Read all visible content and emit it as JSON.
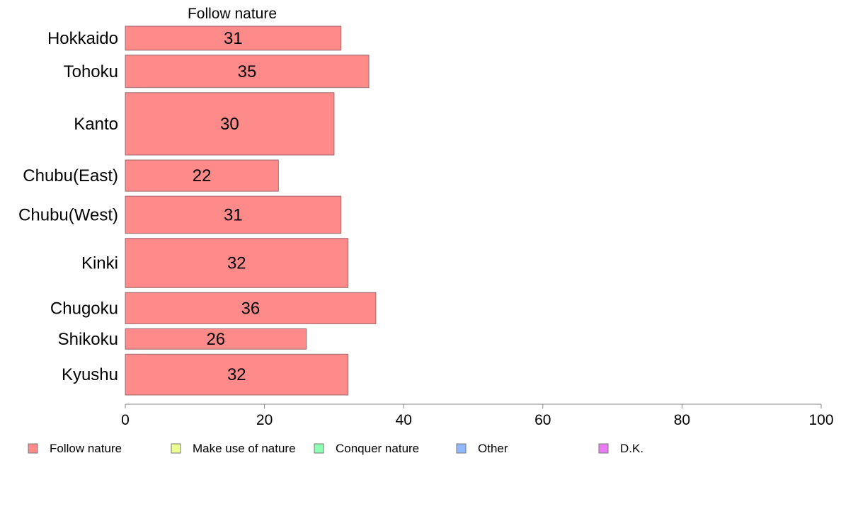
{
  "chart_data": {
    "type": "bar",
    "orientation": "horizontal",
    "panel_title": "Follow nature",
    "categories": [
      "Hokkaido",
      "Tohoku",
      "Kanto",
      "Chubu(East)",
      "Chubu(West)",
      "Kinki",
      "Chugoku",
      "Shikoku",
      "Kyushu"
    ],
    "bar_thickness_weights": [
      1.0,
      1.35,
      2.6,
      1.3,
      1.55,
      2.05,
      1.3,
      0.85,
      1.7
    ],
    "series": [
      {
        "name": "Follow nature",
        "values": [
          31,
          35,
          30,
          22,
          31,
          32,
          36,
          26,
          32
        ]
      }
    ],
    "data_labels": [
      "31",
      "35",
      "30",
      "22",
      "31",
      "32",
      "36",
      "26",
      "32"
    ],
    "xlim": [
      0,
      100
    ],
    "x_ticks": [
      0,
      20,
      40,
      60,
      80,
      100
    ],
    "x_tick_labels": [
      "0",
      "20",
      "40",
      "60",
      "80",
      "100"
    ],
    "grid": false,
    "legend_position": "bottom",
    "legend": [
      {
        "label": "Follow nature",
        "color": "#ff8a8a"
      },
      {
        "label": "Make use of nature",
        "color": "#ecff8f"
      },
      {
        "label": "Conquer nature",
        "color": "#8dffb3"
      },
      {
        "label": "Other",
        "color": "#8fb8ff"
      },
      {
        "label": "D.K.",
        "color": "#e97cf3"
      }
    ],
    "colors": {
      "bar_fill": "#ff8a8a",
      "bar_stroke": "#9b6a70",
      "axis": "#888888"
    }
  }
}
